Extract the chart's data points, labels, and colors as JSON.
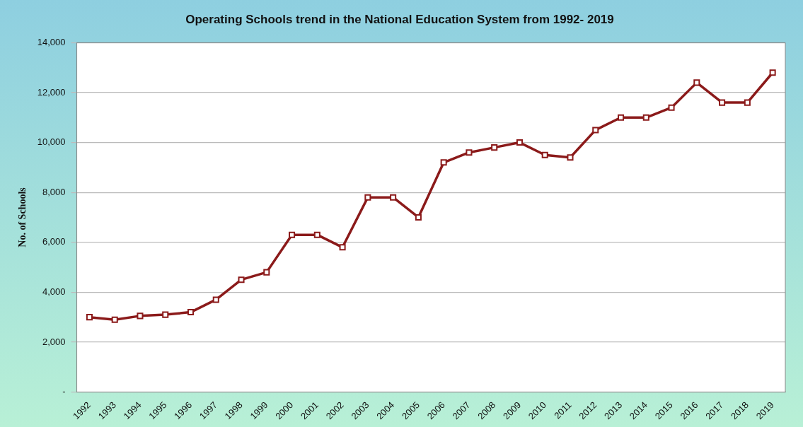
{
  "chart_data": {
    "type": "line",
    "title": "Operating Schools trend in the National Education System from 1992- 2019",
    "ylabel": "No. of Schools",
    "categories": [
      "1992",
      "1993",
      "1994",
      "1995",
      "1996",
      "1997",
      "1998",
      "1999",
      "2000",
      "2001",
      "2002",
      "2003",
      "2004",
      "2005",
      "2006",
      "2007",
      "2008",
      "2009",
      "2010",
      "2011",
      "2012",
      "2013",
      "2014",
      "2015",
      "2016",
      "2017",
      "2018",
      "2019"
    ],
    "series": [
      {
        "color": "#8b1a1a",
        "values": [
          3000,
          2900,
          3050,
          3100,
          3200,
          3700,
          4500,
          4800,
          6300,
          6300,
          5800,
          7800,
          7800,
          7000,
          9200,
          9600,
          9800,
          10000,
          9500,
          9400,
          10500,
          11000,
          11000,
          11400,
          12400,
          11600,
          11600,
          12800
        ]
      }
    ],
    "ylim": [
      0,
      14000
    ],
    "yticks": [
      {
        "value": 0,
        "label": "-"
      },
      {
        "value": 2000,
        "label": "2,000"
      },
      {
        "value": 4000,
        "label": "4,000"
      },
      {
        "value": 6000,
        "label": "6,000"
      },
      {
        "value": 8000,
        "label": "8,000"
      },
      {
        "value": 10000,
        "label": "10,000"
      },
      {
        "value": 12000,
        "label": "12,000"
      },
      {
        "value": 14000,
        "label": "14,000"
      }
    ],
    "grid": "y",
    "legend": false,
    "marker": "square",
    "line_style": "solid"
  }
}
